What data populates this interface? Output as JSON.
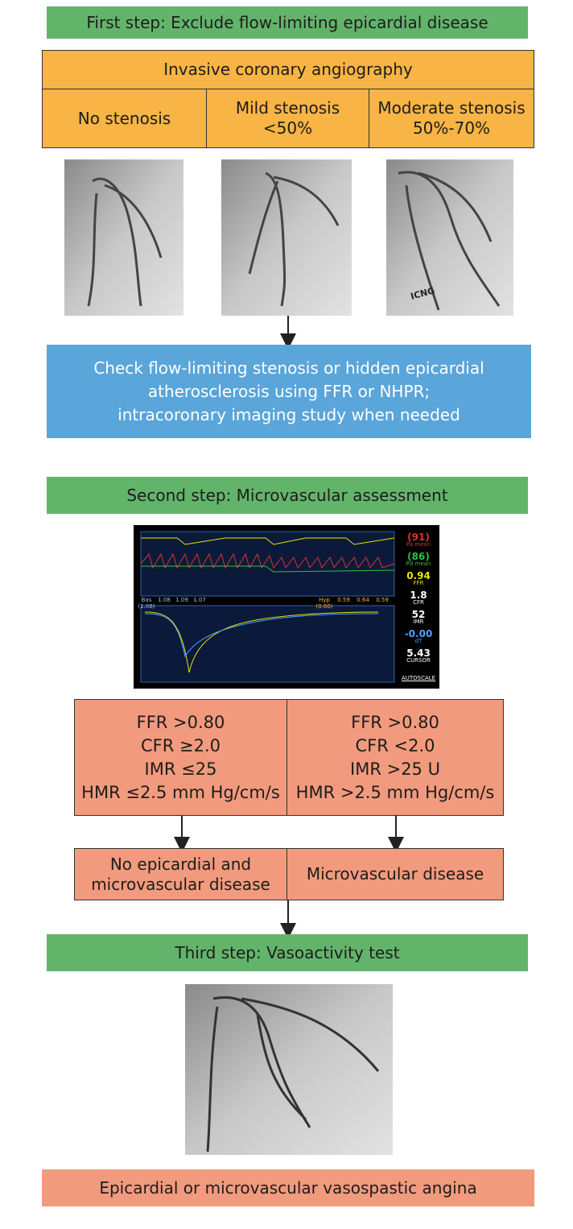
{
  "step1": {
    "title": "First step: Exclude flow-limiting epicardial disease",
    "table": {
      "header": "Invasive coronary angiography",
      "columns": [
        [
          "No stenosis"
        ],
        [
          "Mild stenosis",
          "<50%"
        ],
        [
          "Moderate stenosis",
          "50%-70%"
        ]
      ]
    },
    "image_label": "ICNG",
    "note": [
      "Check flow-limiting stenosis or hidden epicardial",
      "atherosclerosis using FFR or NHPR;",
      "intracoronary imaging study when needed"
    ]
  },
  "step2": {
    "title": "Second step: Microvascular assessment",
    "monitor": {
      "readouts": [
        [
          "(91)",
          "Pa mean"
        ],
        [
          "(86)",
          "Pd mean"
        ],
        [
          "0.94",
          "FFR"
        ],
        [
          "1.8",
          "CFR"
        ],
        [
          "52",
          "IMR"
        ],
        [
          "-0.00",
          "dT"
        ],
        [
          "5.43",
          "CURSOR"
        ]
      ],
      "autoscale": "AUTOSCALE",
      "baseline": [
        "Bas (1.08)",
        "1.08",
        "1.09",
        "1.07"
      ],
      "hyperemia": [
        "Hyp (0.60)",
        "0.59",
        "0.64",
        "0.59"
      ]
    },
    "criteria": [
      [
        "FFR >0.80",
        "CFR ≥2.0",
        "IMR ≤25",
        "HMR ≤2.5 mm Hg/cm/s"
      ],
      [
        "FFR >0.80",
        "CFR <2.0",
        "IMR >25 U",
        "HMR >2.5 mm Hg/cm/s"
      ]
    ],
    "outcomes": [
      [
        "No epicardial and",
        "microvascular disease"
      ],
      [
        "Microvascular disease"
      ]
    ]
  },
  "step3": {
    "title": "Third step: Vasoactivity test",
    "result": "Epicardial or microvascular vasospastic angina"
  }
}
